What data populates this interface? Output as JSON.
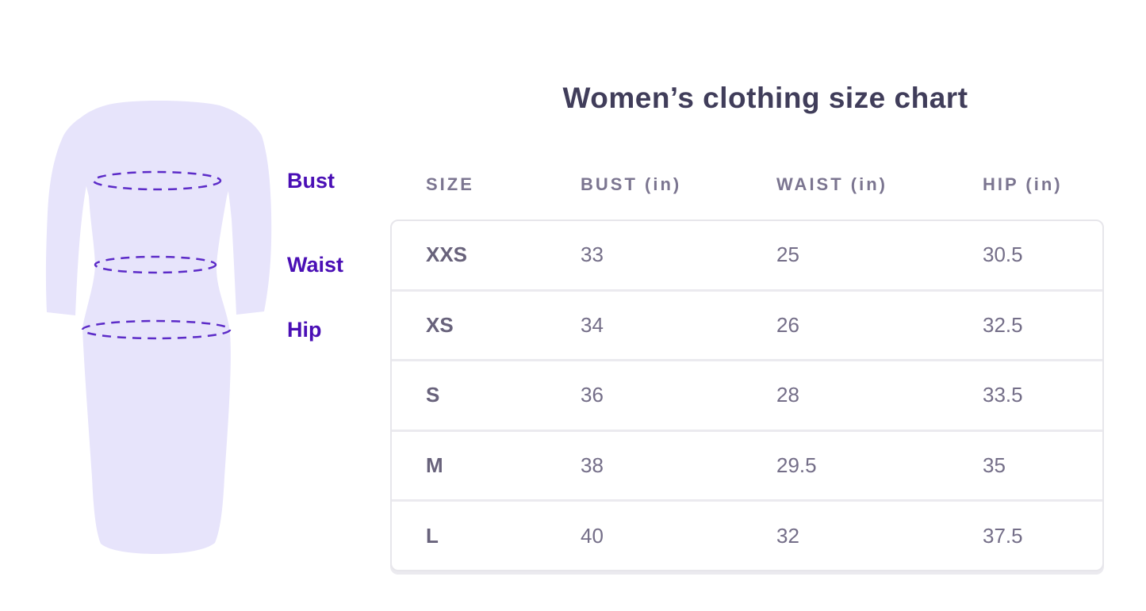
{
  "title": "Women’s clothing size chart",
  "figure": {
    "labels": {
      "bust": "Bust",
      "waist": "Waist",
      "hip": "Hip"
    }
  },
  "chart_data": {
    "type": "table",
    "title": "Women’s clothing size chart",
    "columns": [
      "SIZE",
      "BUST (in)",
      "WAIST (in)",
      "HIP (in)"
    ],
    "rows": [
      [
        "XXS",
        "33",
        "25",
        "30.5"
      ],
      [
        "XS",
        "34",
        "26",
        "32.5"
      ],
      [
        "S",
        "36",
        "28",
        "33.5"
      ],
      [
        "M",
        "38",
        "29.5",
        "35"
      ],
      [
        "L",
        "40",
        "32",
        "37.5"
      ]
    ]
  },
  "colors": {
    "background": "#FFFFFF",
    "accent_purple": "#4A0FB5",
    "ellipse_stroke": "#5C2BC8",
    "dress_fill": "#E7E4FB",
    "title_text": "#403D5A",
    "header_text": "#7B7590",
    "size_text": "#68627B",
    "value_text": "#746E88",
    "table_border": "#E7E6EB",
    "row_separator": "#EBEAEF"
  }
}
